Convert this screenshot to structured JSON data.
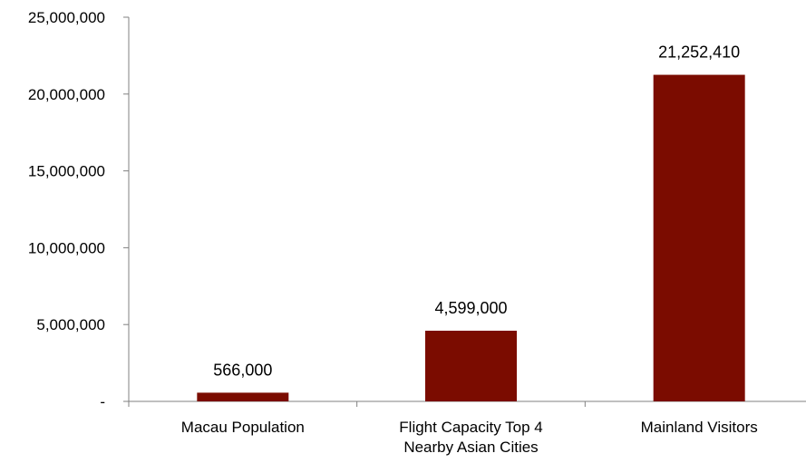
{
  "chart_data": {
    "type": "bar",
    "categories": [
      [
        "Macau Population"
      ],
      [
        "Flight Capacity Top 4",
        "Nearby Asian Cities"
      ],
      [
        "Mainland Visitors"
      ]
    ],
    "values": [
      566000,
      4599000,
      21252410
    ],
    "data_labels": [
      "566,000",
      "4,599,000",
      "21,252,410"
    ],
    "y_ticks": [
      {
        "value": 0,
        "label": "-"
      },
      {
        "value": 5000000,
        "label": "5,000,000"
      },
      {
        "value": 10000000,
        "label": "10,000,000"
      },
      {
        "value": 15000000,
        "label": "15,000,000"
      },
      {
        "value": 20000000,
        "label": "20,000,000"
      },
      {
        "value": 25000000,
        "label": "25,000,000"
      }
    ],
    "ylim": [
      0,
      25000000
    ],
    "grid": false,
    "legend": "none",
    "bar_color": "#7b0c00",
    "axis_color": "#808080"
  }
}
